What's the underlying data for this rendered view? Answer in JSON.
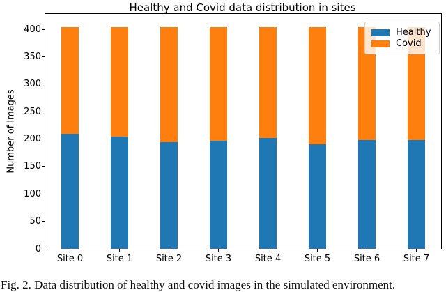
{
  "figure": {
    "caption_clipped": "Fig. 2. Data distribution of healthy and covid images in the simulated environment."
  },
  "chart_data": {
    "type": "bar",
    "stacked": true,
    "title": "Healthy and Covid data distribution in sites",
    "xlabel": "",
    "ylabel": "Number of images",
    "categories": [
      "Site 0",
      "Site 1",
      "Site 2",
      "Site 3",
      "Site 4",
      "Site 5",
      "Site 6",
      "Site 7"
    ],
    "series": [
      {
        "name": "Healthy",
        "color": "#1f77b4",
        "values": [
          209,
          204,
          194,
          197,
          202,
          191,
          198,
          198
        ]
      },
      {
        "name": "Covid",
        "color": "#ff7f0e",
        "values": [
          195,
          200,
          210,
          207,
          202,
          213,
          206,
          206
        ]
      }
    ],
    "total_per_site": 404,
    "yticks": [
      0,
      50,
      100,
      150,
      200,
      250,
      300,
      350,
      400
    ],
    "ylim": [
      0,
      428
    ],
    "grid": false,
    "legend_position": "upper right"
  }
}
